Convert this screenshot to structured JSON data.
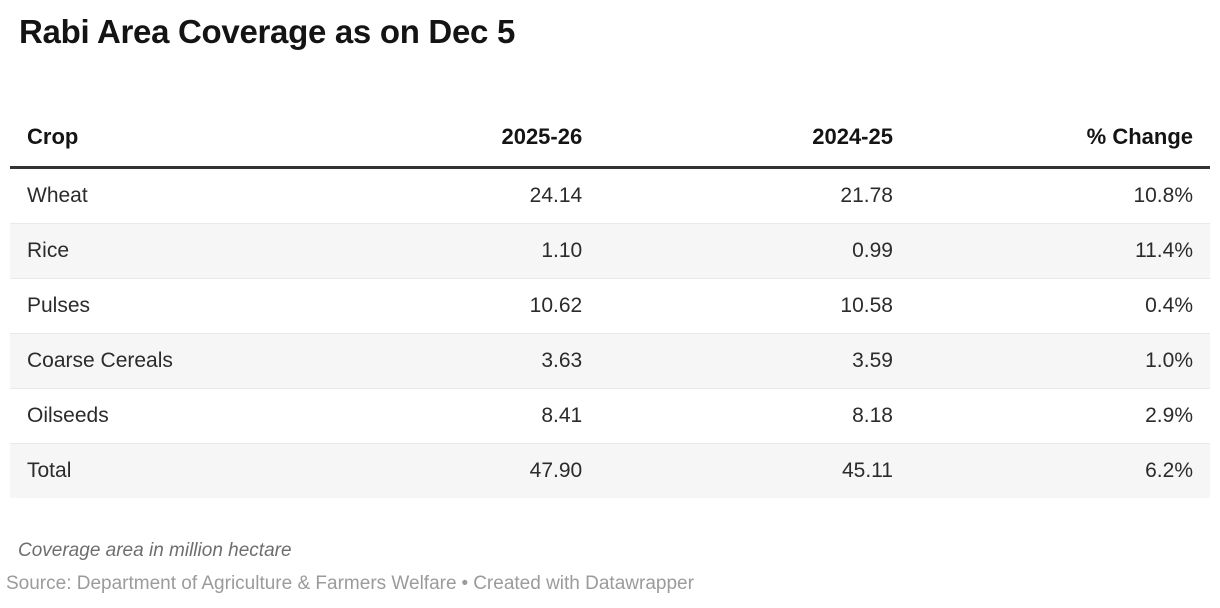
{
  "chart_data": {
    "type": "table",
    "title": "Rabi Area Coverage as on Dec 5",
    "columns": [
      "Crop",
      "2025-26",
      "2024-25",
      "% Change"
    ],
    "rows": [
      [
        "Wheat",
        "24.14",
        "21.78",
        "10.8%"
      ],
      [
        "Rice",
        "1.10",
        "0.99",
        "11.4%"
      ],
      [
        "Pulses",
        "10.62",
        "10.58",
        "0.4%"
      ],
      [
        "Coarse Cereals",
        "3.63",
        "3.59",
        "1.0%"
      ],
      [
        "Oilseeds",
        "8.41",
        "8.18",
        "2.9%"
      ],
      [
        "Total",
        "47.90",
        "45.11",
        "6.2%"
      ]
    ],
    "note": "Coverage area in million hectare",
    "source_line": {
      "source": "Source: Department of Agriculture & Farmers Welfare",
      "separator": "•",
      "attribution": "Created with Datawrapper"
    },
    "layout_hints": {
      "striped_rows": true,
      "value_alignment": "right"
    }
  },
  "colors": {
    "title_text": "#141414",
    "body_text": "#2b2b2b",
    "header_rule": "#333333",
    "row_stripe": "#f6f6f6",
    "row_divider": "#e9e9e9",
    "note_text": "#6e6e6e",
    "source_text": "#9b9b9b"
  }
}
